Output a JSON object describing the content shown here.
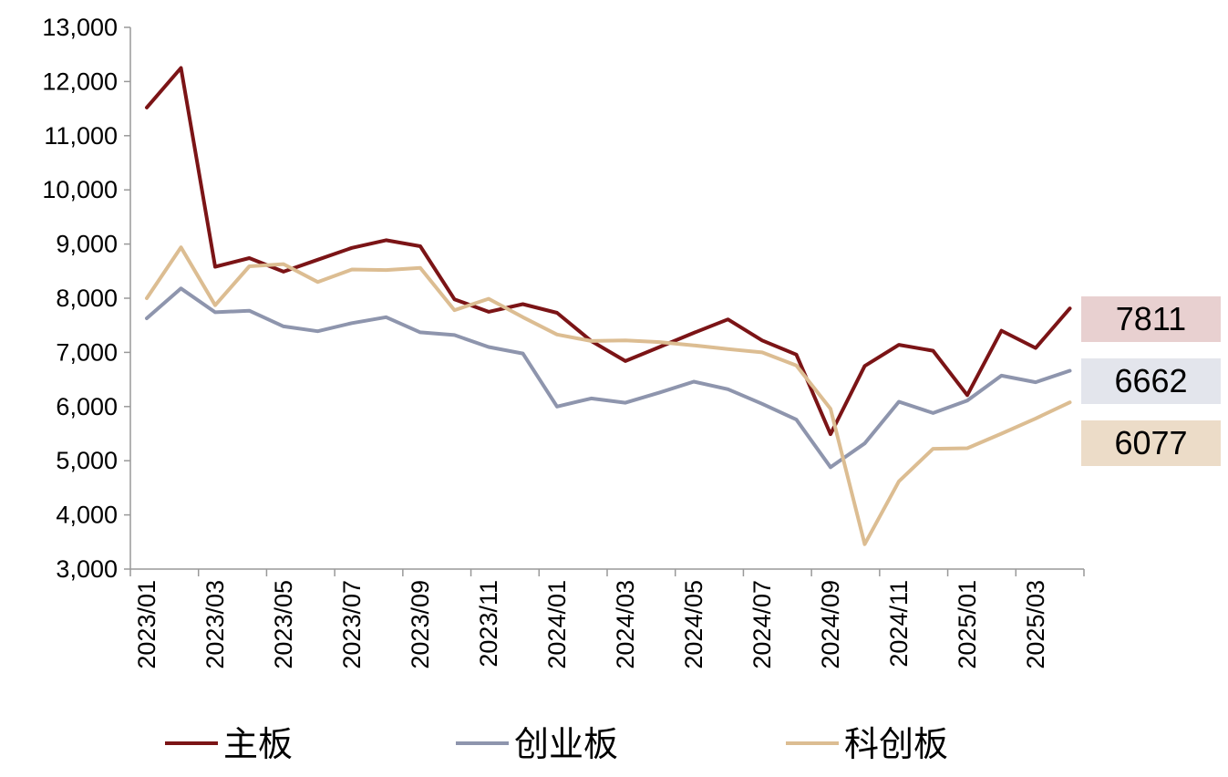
{
  "chart_data": {
    "type": "line",
    "title": "",
    "xlabel": "",
    "ylabel": "",
    "ylim": [
      3000,
      13000
    ],
    "yticks": [
      "3,000",
      "4,000",
      "5,000",
      "6,000",
      "7,000",
      "8,000",
      "9,000",
      "10,000",
      "11,000",
      "12,000",
      "13,000"
    ],
    "x": [
      "2023/01",
      "2023/02",
      "2023/03",
      "2023/04",
      "2023/05",
      "2023/06",
      "2023/07",
      "2023/08",
      "2023/09",
      "2023/10",
      "2023/11",
      "2023/12",
      "2024/01",
      "2024/02",
      "2024/03",
      "2024/04",
      "2024/05",
      "2024/06",
      "2024/07",
      "2024/08",
      "2024/09",
      "2024/10",
      "2024/11",
      "2024/12",
      "2025/01",
      "2025/02",
      "2025/03",
      "2025/04"
    ],
    "xtick_labels": [
      "2023/01",
      "2023/03",
      "2023/05",
      "2023/07",
      "2023/09",
      "2023/11",
      "2024/01",
      "2024/03",
      "2024/05",
      "2024/07",
      "2024/09",
      "2024/11",
      "2025/01",
      "2025/03"
    ],
    "grid": false,
    "legend_position": "bottom",
    "series": [
      {
        "name": "主板",
        "color": "#7b1416",
        "values": [
          11520,
          12250,
          8580,
          8740,
          8490,
          8710,
          8930,
          9070,
          8960,
          7980,
          7750,
          7890,
          7730,
          7210,
          6840,
          7100,
          7360,
          7610,
          7220,
          6960,
          5490,
          6750,
          7140,
          7030,
          6210,
          7400,
          7080,
          7811
        ]
      },
      {
        "name": "创业板",
        "color": "#8e95ad",
        "values": [
          7630,
          8180,
          7740,
          7770,
          7480,
          7390,
          7540,
          7650,
          7370,
          7320,
          7100,
          6980,
          6000,
          6150,
          6070,
          6260,
          6460,
          6320,
          6050,
          5760,
          4880,
          5320,
          6090,
          5880,
          6110,
          6570,
          6450,
          6662
        ]
      },
      {
        "name": "科创板",
        "color": "#dcbd92",
        "values": [
          8000,
          8940,
          7870,
          8590,
          8630,
          8300,
          8530,
          8520,
          8560,
          7780,
          7990,
          7650,
          7330,
          7210,
          7220,
          7190,
          7130,
          7060,
          7000,
          6760,
          5960,
          3460,
          4620,
          5220,
          5230,
          5500,
          5780,
          6077
        ]
      }
    ],
    "end_labels": [
      {
        "text": "7811",
        "color": "#e8d0d0"
      },
      {
        "text": "6662",
        "color": "#e3e5ec"
      },
      {
        "text": "6077",
        "color": "#ecdcc8"
      }
    ]
  }
}
